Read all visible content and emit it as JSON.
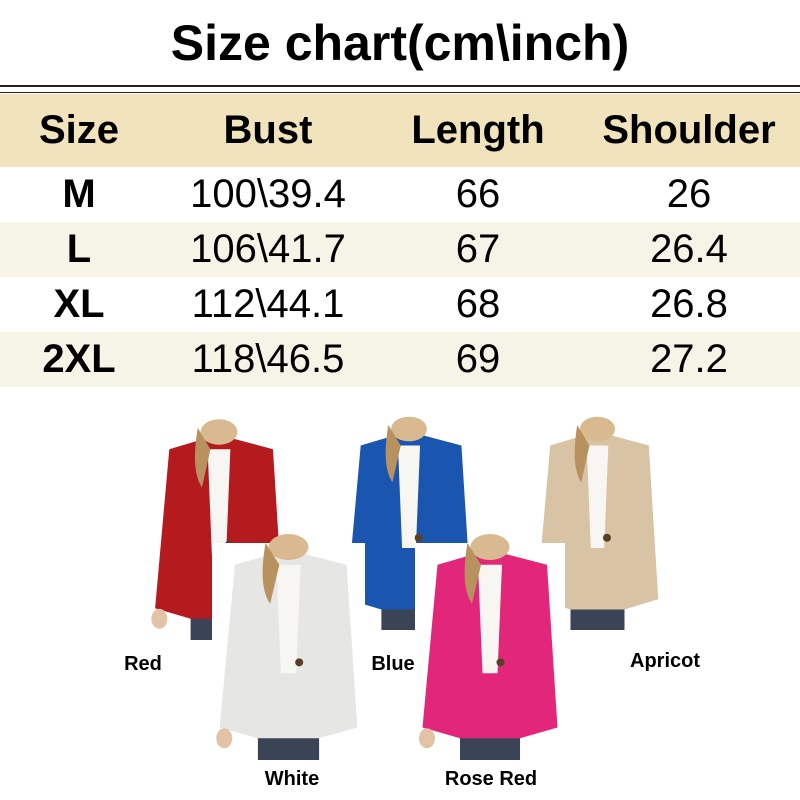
{
  "title": "Size chart(cm\\inch)",
  "table": {
    "headers": [
      "Size",
      "Bust",
      "Length",
      "Shoulder"
    ],
    "rows": [
      [
        "M",
        "100\\39.4",
        "66",
        "26"
      ],
      [
        "L",
        "106\\41.7",
        "67",
        "26.4"
      ],
      [
        "XL",
        "112\\44.1",
        "68",
        "26.8"
      ],
      [
        "2XL",
        "118\\46.5",
        "69",
        "27.2"
      ]
    ]
  },
  "colors": [
    {
      "label": "Red",
      "hex": "#b51a1e"
    },
    {
      "label": "Blue",
      "hex": "#1a56b0"
    },
    {
      "label": "Apricot",
      "hex": "#d8c4a4"
    },
    {
      "label": "White",
      "hex": "#e6e6e4"
    },
    {
      "label": "Rose Red",
      "hex": "#e2267a"
    }
  ]
}
